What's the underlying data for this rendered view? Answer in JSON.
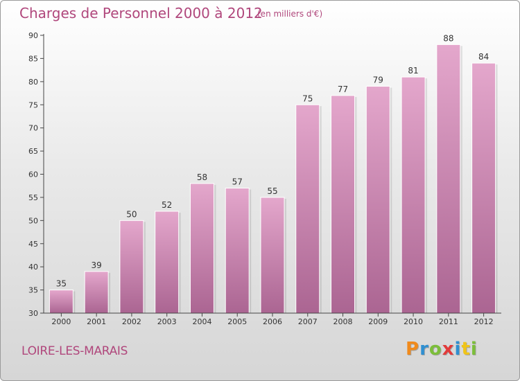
{
  "title": "Charges de Personnel 2000 à 2012",
  "subtitle": "(en milliers d'€)",
  "commune": "LOIRE-LES-MARAIS",
  "logo": {
    "letters": [
      "P",
      "r",
      "o",
      "x",
      "i",
      "t",
      "i"
    ],
    "colors": [
      "#f08a1c",
      "#2f8fd1",
      "#7cbe3a",
      "#e23a3a",
      "#2f8fd1",
      "#f0c419",
      "#7cbe3a"
    ]
  },
  "colors": {
    "bar_top": "#e4a7cc",
    "bar_bottom": "#ab6592",
    "text": "#b0477c",
    "axis": "#444444"
  },
  "chart_data": {
    "type": "bar",
    "categories": [
      "2000",
      "2001",
      "2002",
      "2003",
      "2004",
      "2005",
      "2006",
      "2007",
      "2008",
      "2009",
      "2010",
      "2011",
      "2012"
    ],
    "values": [
      35,
      39,
      50,
      52,
      58,
      57,
      55,
      75,
      77,
      79,
      81,
      88,
      84
    ],
    "data_labels": [
      "35",
      "39",
      "50",
      "52",
      "58",
      "57",
      "55",
      "75",
      "77",
      "79",
      "81",
      "88",
      "84"
    ],
    "ylim": [
      30,
      90
    ],
    "yticks": [
      30,
      35,
      40,
      45,
      50,
      55,
      60,
      65,
      70,
      75,
      80,
      85,
      90
    ],
    "grid": false
  }
}
